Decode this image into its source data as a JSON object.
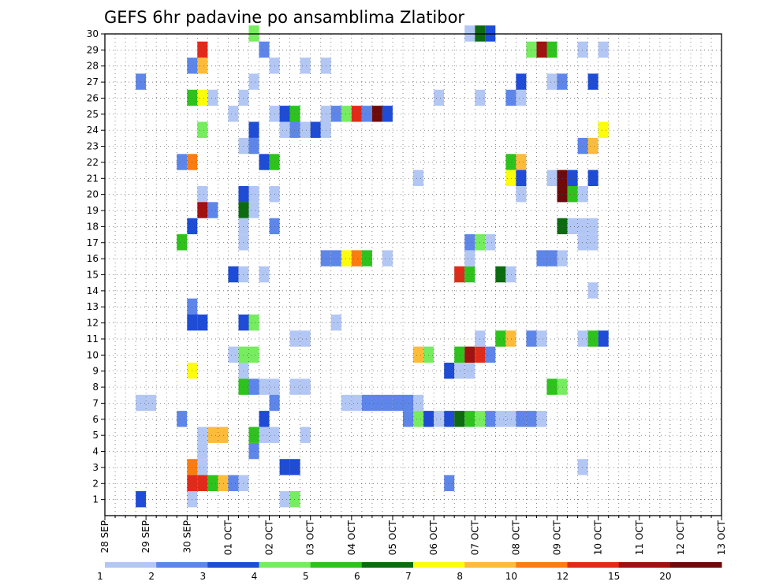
{
  "chart_data": {
    "type": "heatmap",
    "title": "GEFS 6hr padavine po ansamblima Zlatibor",
    "xlabel": "",
    "ylabel": "",
    "x_ticks": [
      "28 SEP",
      "29 SEP",
      "30 SEP",
      "01 OCT",
      "02 OCT",
      "03 OCT",
      "04 OCT",
      "05 OCT",
      "06 OCT",
      "07 OCT",
      "08 OCT",
      "09 OCT",
      "10 OCT",
      "11 OCT",
      "12 OCT",
      "13 OCT"
    ],
    "y_ticks": [
      1,
      2,
      3,
      4,
      5,
      6,
      7,
      8,
      9,
      10,
      11,
      12,
      13,
      14,
      15,
      16,
      17,
      18,
      19,
      20,
      21,
      22,
      23,
      24,
      25,
      26,
      27,
      28,
      29,
      30
    ],
    "grid": true,
    "legend_placement": "bottom",
    "colorbar": {
      "labels": [
        "1",
        "2",
        "3",
        "4",
        "5",
        "6",
        "7",
        "8",
        "10",
        "12",
        "15",
        "20"
      ],
      "colors": [
        "#b3c7f5",
        "#5e86ea",
        "#1e4cd6",
        "#76ec5f",
        "#2ec21d",
        "#0c6b10",
        "#fdfc0a",
        "#fdbb3a",
        "#fb7d0f",
        "#e12b1a",
        "#a0110f",
        "#6e0a0a"
      ]
    },
    "cells_note_units": "x = 6-hour step index from 28 SEP 00Z (4 steps per day), y = ensemble member, c = color class index into colorbar.colors",
    "cells": [
      {
        "x": 9,
        "y": 29,
        "c": 9
      },
      {
        "x": 9,
        "y": 28,
        "c": 7
      },
      {
        "x": 8,
        "y": 28,
        "c": 1
      },
      {
        "x": 8,
        "y": 26,
        "c": 4
      },
      {
        "x": 9,
        "y": 26,
        "c": 6
      },
      {
        "x": 10,
        "y": 26,
        "c": 0
      },
      {
        "x": 9,
        "y": 24,
        "c": 3
      },
      {
        "x": 7,
        "y": 22,
        "c": 1
      },
      {
        "x": 8,
        "y": 22,
        "c": 8
      },
      {
        "x": 9,
        "y": 20,
        "c": 0
      },
      {
        "x": 9,
        "y": 19,
        "c": 10
      },
      {
        "x": 10,
        "y": 19,
        "c": 1
      },
      {
        "x": 8,
        "y": 18,
        "c": 2
      },
      {
        "x": 7,
        "y": 17,
        "c": 4
      },
      {
        "x": 8,
        "y": 13,
        "c": 1
      },
      {
        "x": 8,
        "y": 12,
        "c": 2
      },
      {
        "x": 9,
        "y": 12,
        "c": 2
      },
      {
        "x": 8,
        "y": 9,
        "c": 6
      },
      {
        "x": 7,
        "y": 6,
        "c": 1
      },
      {
        "x": 9,
        "y": 5,
        "c": 0
      },
      {
        "x": 10,
        "y": 5,
        "c": 7
      },
      {
        "x": 11,
        "y": 5,
        "c": 7
      },
      {
        "x": 9,
        "y": 4,
        "c": 0
      },
      {
        "x": 8,
        "y": 3,
        "c": 8
      },
      {
        "x": 9,
        "y": 3,
        "c": 0
      },
      {
        "x": 8,
        "y": 2,
        "c": 9
      },
      {
        "x": 9,
        "y": 2,
        "c": 9
      },
      {
        "x": 10,
        "y": 2,
        "c": 4
      },
      {
        "x": 11,
        "y": 2,
        "c": 7
      },
      {
        "x": 12,
        "y": 2,
        "c": 1
      },
      {
        "x": 13,
        "y": 2,
        "c": 0
      },
      {
        "x": 8,
        "y": 1,
        "c": 0
      },
      {
        "x": 3,
        "y": 27,
        "c": 1
      },
      {
        "x": 3,
        "y": 7,
        "c": 0
      },
      {
        "x": 4,
        "y": 7,
        "c": 0
      },
      {
        "x": 3,
        "y": 1,
        "c": 2
      },
      {
        "x": 14,
        "y": 30,
        "c": 3
      },
      {
        "x": 14,
        "y": 27,
        "c": 0
      },
      {
        "x": 13,
        "y": 26,
        "c": 0
      },
      {
        "x": 12,
        "y": 25,
        "c": 0
      },
      {
        "x": 13,
        "y": 23,
        "c": 0
      },
      {
        "x": 14,
        "y": 23,
        "c": 1
      },
      {
        "x": 14,
        "y": 24,
        "c": 2
      },
      {
        "x": 15,
        "y": 22,
        "c": 2
      },
      {
        "x": 16,
        "y": 22,
        "c": 4
      },
      {
        "x": 13,
        "y": 20,
        "c": 2
      },
      {
        "x": 14,
        "y": 20,
        "c": 0
      },
      {
        "x": 13,
        "y": 19,
        "c": 5
      },
      {
        "x": 14,
        "y": 19,
        "c": 0
      },
      {
        "x": 13,
        "y": 18,
        "c": 0
      },
      {
        "x": 13,
        "y": 17,
        "c": 0
      },
      {
        "x": 12,
        "y": 15,
        "c": 2
      },
      {
        "x": 13,
        "y": 15,
        "c": 0
      },
      {
        "x": 15,
        "y": 15,
        "c": 0
      },
      {
        "x": 13,
        "y": 12,
        "c": 2
      },
      {
        "x": 14,
        "y": 12,
        "c": 3
      },
      {
        "x": 12,
        "y": 10,
        "c": 0
      },
      {
        "x": 13,
        "y": 10,
        "c": 3
      },
      {
        "x": 14,
        "y": 10,
        "c": 3
      },
      {
        "x": 13,
        "y": 9,
        "c": 0
      },
      {
        "x": 13,
        "y": 8,
        "c": 4
      },
      {
        "x": 14,
        "y": 8,
        "c": 1
      },
      {
        "x": 14,
        "y": 4,
        "c": 1
      },
      {
        "x": 14,
        "y": 5,
        "c": 4
      },
      {
        "x": 15,
        "y": 5,
        "c": 0
      },
      {
        "x": 16,
        "y": 5,
        "c": 0
      },
      {
        "x": 15,
        "y": 6,
        "c": 2
      },
      {
        "x": 15,
        "y": 29,
        "c": 1
      },
      {
        "x": 16,
        "y": 28,
        "c": 0
      },
      {
        "x": 16,
        "y": 25,
        "c": 0
      },
      {
        "x": 17,
        "y": 25,
        "c": 2
      },
      {
        "x": 18,
        "y": 25,
        "c": 4
      },
      {
        "x": 17,
        "y": 24,
        "c": 0
      },
      {
        "x": 18,
        "y": 24,
        "c": 1
      },
      {
        "x": 16,
        "y": 20,
        "c": 0
      },
      {
        "x": 16,
        "y": 18,
        "c": 1
      },
      {
        "x": 15,
        "y": 8,
        "c": 0
      },
      {
        "x": 16,
        "y": 8,
        "c": 0
      },
      {
        "x": 16,
        "y": 7,
        "c": 1
      },
      {
        "x": 17,
        "y": 3,
        "c": 2
      },
      {
        "x": 18,
        "y": 3,
        "c": 2
      },
      {
        "x": 17,
        "y": 1,
        "c": 0
      },
      {
        "x": 18,
        "y": 1,
        "c": 3
      },
      {
        "x": 18,
        "y": 11,
        "c": 0
      },
      {
        "x": 19,
        "y": 11,
        "c": 0
      },
      {
        "x": 18,
        "y": 8,
        "c": 0
      },
      {
        "x": 19,
        "y": 8,
        "c": 0
      },
      {
        "x": 19,
        "y": 5,
        "c": 0
      },
      {
        "x": 19,
        "y": 28,
        "c": 0
      },
      {
        "x": 21,
        "y": 28,
        "c": 0
      },
      {
        "x": 19,
        "y": 24,
        "c": 0
      },
      {
        "x": 20,
        "y": 24,
        "c": 2
      },
      {
        "x": 21,
        "y": 24,
        "c": 0
      },
      {
        "x": 21,
        "y": 25,
        "c": 0
      },
      {
        "x": 22,
        "y": 25,
        "c": 1
      },
      {
        "x": 23,
        "y": 25,
        "c": 3
      },
      {
        "x": 24,
        "y": 25,
        "c": 9
      },
      {
        "x": 25,
        "y": 25,
        "c": 1
      },
      {
        "x": 26,
        "y": 25,
        "c": 11
      },
      {
        "x": 27,
        "y": 25,
        "c": 2
      },
      {
        "x": 21,
        "y": 16,
        "c": 1
      },
      {
        "x": 22,
        "y": 16,
        "c": 1
      },
      {
        "x": 23,
        "y": 16,
        "c": 6
      },
      {
        "x": 24,
        "y": 16,
        "c": 8
      },
      {
        "x": 25,
        "y": 16,
        "c": 4
      },
      {
        "x": 27,
        "y": 16,
        "c": 0
      },
      {
        "x": 22,
        "y": 12,
        "c": 0
      },
      {
        "x": 23,
        "y": 7,
        "c": 0
      },
      {
        "x": 24,
        "y": 7,
        "c": 0
      },
      {
        "x": 25,
        "y": 7,
        "c": 1
      },
      {
        "x": 26,
        "y": 7,
        "c": 1
      },
      {
        "x": 27,
        "y": 7,
        "c": 1
      },
      {
        "x": 28,
        "y": 7,
        "c": 1
      },
      {
        "x": 29,
        "y": 7,
        "c": 1
      },
      {
        "x": 30,
        "y": 7,
        "c": 0
      },
      {
        "x": 29,
        "y": 6,
        "c": 1
      },
      {
        "x": 30,
        "y": 6,
        "c": 3
      },
      {
        "x": 31,
        "y": 6,
        "c": 2
      },
      {
        "x": 32,
        "y": 6,
        "c": 0
      },
      {
        "x": 33,
        "y": 6,
        "c": 2
      },
      {
        "x": 34,
        "y": 6,
        "c": 5
      },
      {
        "x": 35,
        "y": 6,
        "c": 4
      },
      {
        "x": 36,
        "y": 6,
        "c": 3
      },
      {
        "x": 37,
        "y": 6,
        "c": 1
      },
      {
        "x": 38,
        "y": 6,
        "c": 0
      },
      {
        "x": 39,
        "y": 6,
        "c": 0
      },
      {
        "x": 40,
        "y": 6,
        "c": 1
      },
      {
        "x": 41,
        "y": 6,
        "c": 1
      },
      {
        "x": 42,
        "y": 6,
        "c": 0
      },
      {
        "x": 30,
        "y": 10,
        "c": 7
      },
      {
        "x": 31,
        "y": 10,
        "c": 3
      },
      {
        "x": 34,
        "y": 10,
        "c": 4
      },
      {
        "x": 35,
        "y": 10,
        "c": 10
      },
      {
        "x": 36,
        "y": 10,
        "c": 9
      },
      {
        "x": 37,
        "y": 10,
        "c": 1
      },
      {
        "x": 30,
        "y": 21,
        "c": 0
      },
      {
        "x": 33,
        "y": 9,
        "c": 2
      },
      {
        "x": 34,
        "y": 9,
        "c": 0
      },
      {
        "x": 35,
        "y": 9,
        "c": 0
      },
      {
        "x": 33,
        "y": 2,
        "c": 1
      },
      {
        "x": 32,
        "y": 26,
        "c": 0
      },
      {
        "x": 36,
        "y": 26,
        "c": 0
      },
      {
        "x": 34,
        "y": 15,
        "c": 9
      },
      {
        "x": 35,
        "y": 15,
        "c": 4
      },
      {
        "x": 35,
        "y": 17,
        "c": 1
      },
      {
        "x": 36,
        "y": 17,
        "c": 3
      },
      {
        "x": 37,
        "y": 17,
        "c": 0
      },
      {
        "x": 35,
        "y": 16,
        "c": 0
      },
      {
        "x": 35,
        "y": 30,
        "c": 0
      },
      {
        "x": 36,
        "y": 30,
        "c": 5
      },
      {
        "x": 37,
        "y": 30,
        "c": 2
      },
      {
        "x": 36,
        "y": 11,
        "c": 0
      },
      {
        "x": 38,
        "y": 15,
        "c": 5
      },
      {
        "x": 39,
        "y": 15,
        "c": 0
      },
      {
        "x": 38,
        "y": 11,
        "c": 4
      },
      {
        "x": 39,
        "y": 11,
        "c": 7
      },
      {
        "x": 41,
        "y": 11,
        "c": 1
      },
      {
        "x": 42,
        "y": 11,
        "c": 0
      },
      {
        "x": 39,
        "y": 26,
        "c": 1
      },
      {
        "x": 40,
        "y": 26,
        "c": 0
      },
      {
        "x": 39,
        "y": 22,
        "c": 4
      },
      {
        "x": 40,
        "y": 22,
        "c": 7
      },
      {
        "x": 39,
        "y": 21,
        "c": 6
      },
      {
        "x": 40,
        "y": 21,
        "c": 2
      },
      {
        "x": 40,
        "y": 27,
        "c": 2
      },
      {
        "x": 40,
        "y": 20,
        "c": 0
      },
      {
        "x": 41,
        "y": 29,
        "c": 3
      },
      {
        "x": 42,
        "y": 29,
        "c": 10
      },
      {
        "x": 43,
        "y": 29,
        "c": 4
      },
      {
        "x": 42,
        "y": 16,
        "c": 1
      },
      {
        "x": 43,
        "y": 16,
        "c": 1
      },
      {
        "x": 44,
        "y": 16,
        "c": 0
      },
      {
        "x": 43,
        "y": 27,
        "c": 0
      },
      {
        "x": 44,
        "y": 27,
        "c": 1
      },
      {
        "x": 43,
        "y": 21,
        "c": 0
      },
      {
        "x": 44,
        "y": 21,
        "c": 11
      },
      {
        "x": 45,
        "y": 21,
        "c": 2
      },
      {
        "x": 44,
        "y": 20,
        "c": 11
      },
      {
        "x": 45,
        "y": 20,
        "c": 4
      },
      {
        "x": 44,
        "y": 18,
        "c": 5
      },
      {
        "x": 45,
        "y": 18,
        "c": 0
      },
      {
        "x": 43,
        "y": 8,
        "c": 4
      },
      {
        "x": 44,
        "y": 8,
        "c": 3
      },
      {
        "x": 46,
        "y": 29,
        "c": 0
      },
      {
        "x": 48,
        "y": 29,
        "c": 0
      },
      {
        "x": 47,
        "y": 27,
        "c": 2
      },
      {
        "x": 46,
        "y": 23,
        "c": 1
      },
      {
        "x": 47,
        "y": 23,
        "c": 7
      },
      {
        "x": 46,
        "y": 20,
        "c": 0
      },
      {
        "x": 47,
        "y": 21,
        "c": 2
      },
      {
        "x": 46,
        "y": 18,
        "c": 0
      },
      {
        "x": 47,
        "y": 18,
        "c": 0
      },
      {
        "x": 46,
        "y": 17,
        "c": 0
      },
      {
        "x": 47,
        "y": 17,
        "c": 0
      },
      {
        "x": 47,
        "y": 14,
        "c": 0
      },
      {
        "x": 46,
        "y": 11,
        "c": 0
      },
      {
        "x": 47,
        "y": 11,
        "c": 4
      },
      {
        "x": 46,
        "y": 3,
        "c": 0
      },
      {
        "x": 48,
        "y": 24,
        "c": 6
      },
      {
        "x": 48,
        "y": 11,
        "c": 2
      }
    ]
  }
}
